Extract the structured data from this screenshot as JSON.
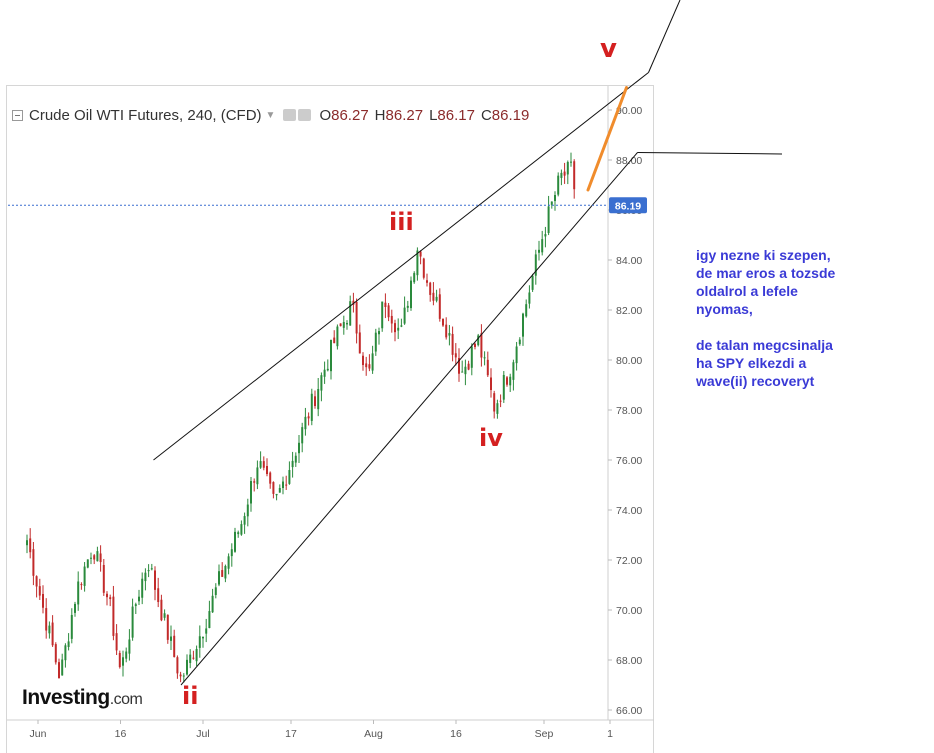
{
  "legend": {
    "symbol": "Crude Oil WTI Futures, 240, (CFD)",
    "open_key": "O",
    "open": "86.27",
    "high_key": "H",
    "high": "86.27",
    "low_key": "L",
    "low": "86.17",
    "close_key": "C",
    "close": "86.19"
  },
  "branding": {
    "name": "Investing",
    "suffix": ".com"
  },
  "annotation": "igy nezne ki szepen,\nde mar eros a tozsde\noldalrol a lefele\nnyomas,\n\nde talan megcsinalja\nha SPY elkezdi a\nwave(ii) recoveryt",
  "wave_labels": {
    "ii": "ii",
    "iii": "iii",
    "iv": "iv",
    "v": "v"
  },
  "colors": {
    "up": "#2a8a3c",
    "down": "#c22a2a",
    "projection": "#f08c2c",
    "wave_text": "#d42020",
    "note": "#3a3ad6",
    "price_tag": "#3a6fd0"
  },
  "chart_data": {
    "type": "candlestick",
    "instrument": "Crude Oil WTI Futures",
    "timeframe": "240",
    "ylim": [
      65.5,
      91.0
    ],
    "y_ticks": [
      "66.00",
      "68.00",
      "70.00",
      "72.00",
      "74.00",
      "76.00",
      "78.00",
      "80.00",
      "82.00",
      "84.00",
      "86.00",
      "88.00",
      "90.00"
    ],
    "x_ticks": [
      "Jun",
      "16",
      "Jul",
      "17",
      "Aug",
      "16",
      "Sep",
      "1"
    ],
    "last_price": "86.19",
    "close_path": [
      [
        "2018-05-30",
        72.8
      ],
      [
        "2018-06-02",
        70.0
      ],
      [
        "2018-06-05",
        67.3
      ],
      [
        "2018-06-08",
        70.8
      ],
      [
        "2018-06-11",
        72.6
      ],
      [
        "2018-06-14",
        70.2
      ],
      [
        "2018-06-16",
        67.5
      ],
      [
        "2018-06-19",
        70.5
      ],
      [
        "2018-06-21",
        72.0
      ],
      [
        "2018-06-24",
        69.5
      ],
      [
        "2018-06-27",
        67.2
      ],
      [
        "2018-07-01",
        69.3
      ],
      [
        "2018-07-04",
        71.2
      ],
      [
        "2018-07-08",
        73.5
      ],
      [
        "2018-07-11",
        76.0
      ],
      [
        "2018-07-14",
        74.2
      ],
      [
        "2018-07-18",
        76.5
      ],
      [
        "2018-07-22",
        79.0
      ],
      [
        "2018-07-25",
        80.8
      ],
      [
        "2018-07-28",
        82.2
      ],
      [
        "2018-07-31",
        79.2
      ],
      [
        "2018-08-03",
        82.5
      ],
      [
        "2018-08-06",
        81.0
      ],
      [
        "2018-08-09",
        84.6
      ],
      [
        "2018-08-11",
        83.0
      ],
      [
        "2018-08-14",
        81.5
      ],
      [
        "2018-08-17",
        79.5
      ],
      [
        "2018-08-20",
        80.8
      ],
      [
        "2018-08-23",
        78.1
      ],
      [
        "2018-08-26",
        79.8
      ],
      [
        "2018-08-29",
        82.5
      ],
      [
        "2018-09-01",
        85.2
      ],
      [
        "2018-09-04",
        87.3
      ],
      [
        "2018-09-06",
        87.6
      ],
      [
        "2018-09-07",
        86.19
      ]
    ],
    "swing_points": [
      {
        "label": "ii",
        "date": "2018-06-27",
        "price": 67.0
      },
      {
        "label": "iii",
        "date": "2018-08-09",
        "price": 84.8
      },
      {
        "label": "iv",
        "date": "2018-08-23",
        "price": 77.6
      }
    ],
    "channel_lines": [
      {
        "from": [
          "2018-06-22",
          76.0
        ],
        "to": [
          "2018-09-20",
          91.5
        ]
      },
      {
        "from": [
          "2018-06-27",
          67.0
        ],
        "to": [
          "2018-09-18",
          88.3
        ]
      }
    ],
    "projection": {
      "from": [
        "2018-09-09",
        86.8
      ],
      "to": [
        "2018-09-16",
        90.9
      ]
    }
  }
}
